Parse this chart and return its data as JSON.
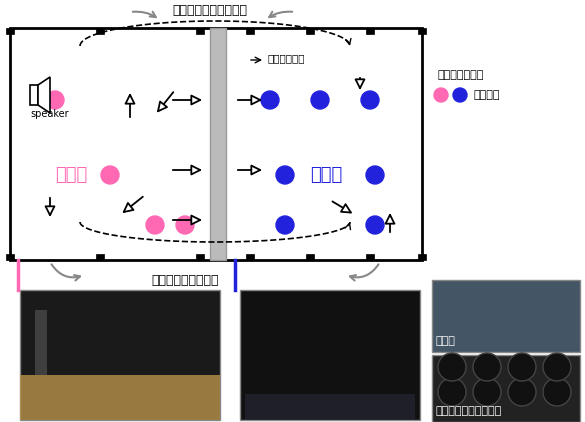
{
  "bg_color": "#ffffff",
  "title_top": "窓の外からの回り込み",
  "label_corridor": "廊下を介しての影響",
  "label_solid": "側路固体伝搬",
  "legend_arrow": "矢印：音の流れ",
  "legend_dot": "測定位置",
  "label_source": "音源室",
  "label_receive": "受音室",
  "label_speaker": "speaker",
  "label_keisoku": "騒音計",
  "label_speaker_amp": "スピーカ・パワアンプ",
  "pink_color": "#FF69B4",
  "blue_color": "#2222DD",
  "gray_arrow": "#888888"
}
